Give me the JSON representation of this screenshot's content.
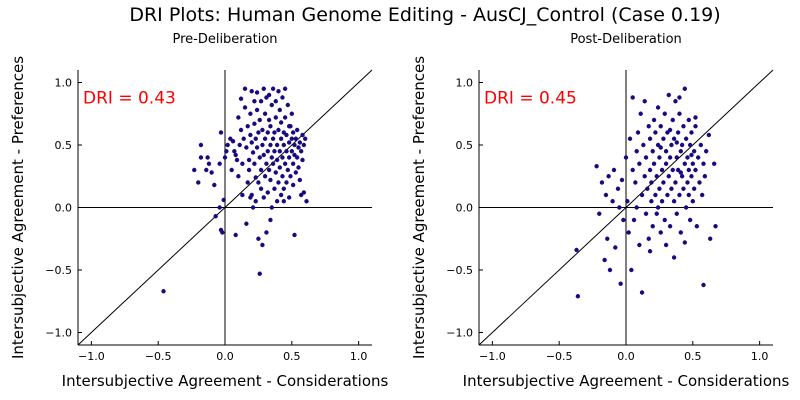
{
  "title": "DRI Plots: Human Genome Editing - AusCJ_Control (Case 0.19)",
  "colors": {
    "point": "#1a0a80",
    "annotation": "#ff0000",
    "line": "#000000"
  },
  "chart_data": [
    {
      "type": "scatter",
      "subtitle": "Pre-Deliberation",
      "xlabel": "Intersubjective Agreement - Considerations",
      "ylabel": "Intersubjective Agreement - Preferences",
      "xlim": [
        -1.1,
        1.1
      ],
      "ylim": [
        -1.1,
        1.1
      ],
      "xticks": [
        -1.0,
        -0.5,
        0.0,
        0.5,
        1.0
      ],
      "yticks": [
        -1.0,
        -0.5,
        0.0,
        0.5,
        1.0
      ],
      "xtick_labels": [
        "−1.0",
        "−0.5",
        "0.0",
        "0.5",
        "1.0"
      ],
      "ytick_labels": [
        "−1.0",
        "−0.5",
        "0.0",
        "0.5",
        "1.0"
      ],
      "annotation": "DRI = 0.43",
      "reference_lines": [
        "y = x",
        "x = 0",
        "y = 0"
      ],
      "grid": false,
      "points": [
        [
          -0.46,
          -0.67
        ],
        [
          -0.23,
          0.3
        ],
        [
          -0.2,
          0.2
        ],
        [
          -0.18,
          0.4
        ],
        [
          -0.18,
          0.5
        ],
        [
          -0.14,
          0.3
        ],
        [
          -0.13,
          0.4
        ],
        [
          -0.12,
          0.35
        ],
        [
          -0.1,
          0.28
        ],
        [
          -0.08,
          0.18
        ],
        [
          -0.07,
          -0.07
        ],
        [
          -0.04,
          0.0
        ],
        [
          -0.04,
          0.35
        ],
        [
          -0.03,
          0.6
        ],
        [
          -0.03,
          -0.18
        ],
        [
          -0.02,
          -0.2
        ],
        [
          -0.01,
          0.06
        ],
        [
          0.0,
          0.4
        ],
        [
          0.01,
          0.45
        ],
        [
          0.02,
          0.5
        ],
        [
          0.04,
          0.55
        ],
        [
          0.05,
          0.3
        ],
        [
          0.06,
          0.53
        ],
        [
          0.07,
          0.45
        ],
        [
          0.08,
          0.42
        ],
        [
          0.09,
          0.38
        ],
        [
          0.1,
          0.72
        ],
        [
          0.1,
          0.25
        ],
        [
          0.11,
          0.5
        ],
        [
          0.12,
          0.62
        ],
        [
          0.12,
          0.87
        ],
        [
          0.13,
          0.35
        ],
        [
          0.13,
          0.1
        ],
        [
          0.14,
          0.55
        ],
        [
          0.15,
          0.95
        ],
        [
          0.15,
          0.8
        ],
        [
          0.16,
          0.48
        ],
        [
          0.16,
          -0.13
        ],
        [
          0.17,
          0.2
        ],
        [
          0.17,
          0.65
        ],
        [
          0.18,
          0.38
        ],
        [
          0.18,
          0.3
        ],
        [
          0.19,
          0.75
        ],
        [
          0.19,
          0.58
        ],
        [
          0.2,
          0.1
        ],
        [
          0.2,
          0.93
        ],
        [
          0.2,
          0.52
        ],
        [
          0.21,
          0.44
        ],
        [
          0.21,
          0.0
        ],
        [
          0.22,
          0.85
        ],
        [
          0.22,
          0.67
        ],
        [
          0.22,
          0.35
        ],
        [
          0.23,
          0.24
        ],
        [
          0.23,
          0.55
        ],
        [
          0.23,
          0.05
        ],
        [
          0.24,
          0.78
        ],
        [
          0.24,
          0.92
        ],
        [
          0.24,
          0.48
        ],
        [
          0.25,
          0.2
        ],
        [
          0.25,
          0.6
        ],
        [
          0.25,
          -0.25
        ],
        [
          0.26,
          0.4
        ],
        [
          0.26,
          0.7
        ],
        [
          0.26,
          -0.53
        ],
        [
          0.27,
          0.3
        ],
        [
          0.27,
          0.85
        ],
        [
          0.27,
          0.15
        ],
        [
          0.28,
          0.5
        ],
        [
          0.28,
          0.62
        ],
        [
          0.28,
          -0.3
        ],
        [
          0.29,
          0.95
        ],
        [
          0.29,
          0.42
        ],
        [
          0.29,
          0.08
        ],
        [
          0.3,
          0.75
        ],
        [
          0.3,
          0.55
        ],
        [
          0.3,
          0.25
        ],
        [
          0.31,
          0.35
        ],
        [
          0.31,
          0.88
        ],
        [
          0.31,
          -0.2
        ],
        [
          0.32,
          0.6
        ],
        [
          0.32,
          0.45
        ],
        [
          0.32,
          0.12
        ],
        [
          0.33,
          0.7
        ],
        [
          0.33,
          0.3
        ],
        [
          0.33,
          0.9
        ],
        [
          0.34,
          0.5
        ],
        [
          0.34,
          0.22
        ],
        [
          0.34,
          0.65
        ],
        [
          0.35,
          0.4
        ],
        [
          0.35,
          0.82
        ],
        [
          0.35,
          0.0
        ],
        [
          0.36,
          0.55
        ],
        [
          0.36,
          0.35
        ],
        [
          0.36,
          0.95
        ],
        [
          0.37,
          0.6
        ],
        [
          0.37,
          0.15
        ],
        [
          0.37,
          0.45
        ],
        [
          0.38,
          0.72
        ],
        [
          0.38,
          0.28
        ],
        [
          0.38,
          0.85
        ],
        [
          0.39,
          0.5
        ],
        [
          0.39,
          0.38
        ],
        [
          0.39,
          0.05
        ],
        [
          0.4,
          0.62
        ],
        [
          0.4,
          0.93
        ],
        [
          0.4,
          0.2
        ],
        [
          0.41,
          0.45
        ],
        [
          0.41,
          0.78
        ],
        [
          0.41,
          0.32
        ],
        [
          0.42,
          0.55
        ],
        [
          0.42,
          0.1
        ],
        [
          0.42,
          0.68
        ],
        [
          0.43,
          0.4
        ],
        [
          0.43,
          0.88
        ],
        [
          0.43,
          0.25
        ],
        [
          0.44,
          0.5
        ],
        [
          0.44,
          0.6
        ],
        [
          0.44,
          0.15
        ],
        [
          0.45,
          0.72
        ],
        [
          0.45,
          0.35
        ],
        [
          0.45,
          0.95
        ],
        [
          0.46,
          0.45
        ],
        [
          0.46,
          0.2
        ],
        [
          0.46,
          0.58
        ],
        [
          0.47,
          0.82
        ],
        [
          0.47,
          0.3
        ],
        [
          0.48,
          0.52
        ],
        [
          0.48,
          0.4
        ],
        [
          0.48,
          0.08
        ],
        [
          0.49,
          0.65
        ],
        [
          0.49,
          0.25
        ],
        [
          0.5,
          0.55
        ],
        [
          0.5,
          0.45
        ],
        [
          0.5,
          0.75
        ],
        [
          0.51,
          0.35
        ],
        [
          0.51,
          0.6
        ],
        [
          0.51,
          0.18
        ],
        [
          0.52,
          0.5
        ],
        [
          0.52,
          0.42
        ],
        [
          0.53,
          0.28
        ],
        [
          0.53,
          0.55
        ],
        [
          0.54,
          0.4
        ],
        [
          0.54,
          0.62
        ],
        [
          0.55,
          0.48
        ],
        [
          0.55,
          0.32
        ],
        [
          0.56,
          0.22
        ],
        [
          0.56,
          0.52
        ],
        [
          0.57,
          0.45
        ],
        [
          0.57,
          0.1
        ],
        [
          0.58,
          0.58
        ],
        [
          0.58,
          0.38
        ],
        [
          0.59,
          0.5
        ],
        [
          0.59,
          0.12
        ],
        [
          0.6,
          0.55
        ],
        [
          0.61,
          0.05
        ],
        [
          0.52,
          -0.22
        ],
        [
          0.08,
          -0.22
        ],
        [
          0.34,
          -0.1
        ],
        [
          0.19,
          0.08
        ],
        [
          0.48,
          0.65
        ],
        [
          0.44,
          0.05
        ]
      ]
    },
    {
      "type": "scatter",
      "subtitle": "Post-Deliberation",
      "xlabel": "Intersubjective Agreement - Considerations",
      "ylabel": "Intersubjective Agreement - Preferences",
      "xlim": [
        -1.1,
        1.1
      ],
      "ylim": [
        -1.1,
        1.1
      ],
      "xticks": [
        -1.0,
        -0.5,
        0.0,
        0.5,
        1.0
      ],
      "yticks": [
        -1.0,
        -0.5,
        0.0,
        0.5,
        1.0
      ],
      "xtick_labels": [
        "−1.0",
        "−0.5",
        "0.0",
        "0.5",
        "1.0"
      ],
      "ytick_labels": [
        "−1.0",
        "−0.5",
        "0.0",
        "0.5",
        "1.0"
      ],
      "annotation": "DRI = 0.45",
      "reference_lines": [
        "y = x",
        "x = 0",
        "y = 0"
      ],
      "grid": false,
      "points": [
        [
          -0.37,
          -0.34
        ],
        [
          -0.36,
          -0.71
        ],
        [
          -0.22,
          0.33
        ],
        [
          -0.2,
          -0.05
        ],
        [
          -0.18,
          0.2
        ],
        [
          -0.16,
          -0.42
        ],
        [
          -0.15,
          0.1
        ],
        [
          -0.14,
          -0.25
        ],
        [
          -0.13,
          0.25
        ],
        [
          -0.12,
          -0.5
        ],
        [
          -0.1,
          0.05
        ],
        [
          -0.09,
          0.3
        ],
        [
          -0.08,
          -0.32
        ],
        [
          -0.06,
          0.15
        ],
        [
          -0.05,
          0.0
        ],
        [
          -0.04,
          -0.61
        ],
        [
          -0.03,
          0.22
        ],
        [
          -0.02,
          -0.1
        ],
        [
          0.0,
          0.4
        ],
        [
          0.01,
          0.05
        ],
        [
          0.02,
          -0.2
        ],
        [
          0.03,
          0.55
        ],
        [
          0.04,
          -0.5
        ],
        [
          0.05,
          0.88
        ],
        [
          0.05,
          0.3
        ],
        [
          0.06,
          -0.1
        ],
        [
          0.07,
          0.2
        ],
        [
          0.08,
          0.45
        ],
        [
          0.08,
          0.0
        ],
        [
          0.09,
          0.6
        ],
        [
          0.1,
          -0.3
        ],
        [
          0.1,
          0.35
        ],
        [
          0.11,
          0.75
        ],
        [
          0.12,
          0.1
        ],
        [
          0.12,
          -0.68
        ],
        [
          0.13,
          0.5
        ],
        [
          0.14,
          0.25
        ],
        [
          0.14,
          0.85
        ],
        [
          0.15,
          -0.05
        ],
        [
          0.15,
          0.4
        ],
        [
          0.16,
          0.15
        ],
        [
          0.17,
          0.65
        ],
        [
          0.17,
          -0.25
        ],
        [
          0.18,
          0.3
        ],
        [
          0.18,
          0.55
        ],
        [
          0.19,
          0.05
        ],
        [
          0.19,
          0.2
        ],
        [
          0.2,
          0.45
        ],
        [
          0.2,
          -0.15
        ],
        [
          0.21,
          0.7
        ],
        [
          0.21,
          0.35
        ],
        [
          0.22,
          0.1
        ],
        [
          0.22,
          0.6
        ],
        [
          0.23,
          0.25
        ],
        [
          0.23,
          -0.05
        ],
        [
          0.24,
          0.5
        ],
        [
          0.24,
          0.8
        ],
        [
          0.25,
          0.15
        ],
        [
          0.25,
          0.4
        ],
        [
          0.26,
          -0.2
        ],
        [
          0.26,
          0.65
        ],
        [
          0.27,
          0.3
        ],
        [
          0.27,
          0.05
        ],
        [
          0.28,
          0.55
        ],
        [
          0.28,
          0.2
        ],
        [
          0.29,
          0.75
        ],
        [
          0.29,
          -0.1
        ],
        [
          0.3,
          0.45
        ],
        [
          0.3,
          0.35
        ],
        [
          0.31,
          0.1
        ],
        [
          0.31,
          0.6
        ],
        [
          0.32,
          0.25
        ],
        [
          0.32,
          0.9
        ],
        [
          0.33,
          0.4
        ],
        [
          0.33,
          -0.15
        ],
        [
          0.34,
          0.5
        ],
        [
          0.34,
          0.15
        ],
        [
          0.35,
          0.7
        ],
        [
          0.35,
          0.3
        ],
        [
          0.36,
          0.05
        ],
        [
          0.36,
          0.55
        ],
        [
          0.37,
          0.2
        ],
        [
          0.37,
          0.85
        ],
        [
          0.38,
          0.4
        ],
        [
          0.38,
          -0.05
        ],
        [
          0.39,
          0.6
        ],
        [
          0.39,
          0.3
        ],
        [
          0.4,
          0.1
        ],
        [
          0.4,
          0.75
        ],
        [
          0.41,
          0.45
        ],
        [
          0.41,
          -0.2
        ],
        [
          0.42,
          0.5
        ],
        [
          0.42,
          0.25
        ],
        [
          0.43,
          0.65
        ],
        [
          0.43,
          0.15
        ],
        [
          0.44,
          0.35
        ],
        [
          0.44,
          0.95
        ],
        [
          0.45,
          0.55
        ],
        [
          0.45,
          0.0
        ],
        [
          0.46,
          0.4
        ],
        [
          0.46,
          0.2
        ],
        [
          0.47,
          0.7
        ],
        [
          0.47,
          0.3
        ],
        [
          0.48,
          -0.1
        ],
        [
          0.48,
          0.5
        ],
        [
          0.49,
          0.25
        ],
        [
          0.49,
          0.6
        ],
        [
          0.5,
          0.35
        ],
        [
          0.5,
          0.05
        ],
        [
          0.51,
          0.45
        ],
        [
          0.51,
          0.15
        ],
        [
          0.52,
          0.65
        ],
        [
          0.52,
          0.3
        ],
        [
          0.53,
          -0.15
        ],
        [
          0.54,
          0.4
        ],
        [
          0.55,
          0.2
        ],
        [
          0.56,
          0.5
        ],
        [
          0.57,
          0.1
        ],
        [
          0.58,
          -0.62
        ],
        [
          0.58,
          0.35
        ],
        [
          0.59,
          0.25
        ],
        [
          0.6,
          0.45
        ],
        [
          0.62,
          0.58
        ],
        [
          0.63,
          -0.25
        ],
        [
          0.66,
          0.35
        ],
        [
          0.67,
          -0.15
        ],
        [
          0.4,
          0.88
        ],
        [
          0.3,
          -0.3
        ],
        [
          0.18,
          -0.35
        ],
        [
          0.44,
          -0.28
        ],
        [
          0.36,
          -0.4
        ],
        [
          0.24,
          0.0
        ],
        [
          0.52,
          0.72
        ],
        [
          0.47,
          0.1
        ],
        [
          0.33,
          0.62
        ],
        [
          0.41,
          0.28
        ],
        [
          0.26,
          0.48
        ],
        [
          0.38,
          0.52
        ],
        [
          0.49,
          0.42
        ]
      ]
    }
  ]
}
